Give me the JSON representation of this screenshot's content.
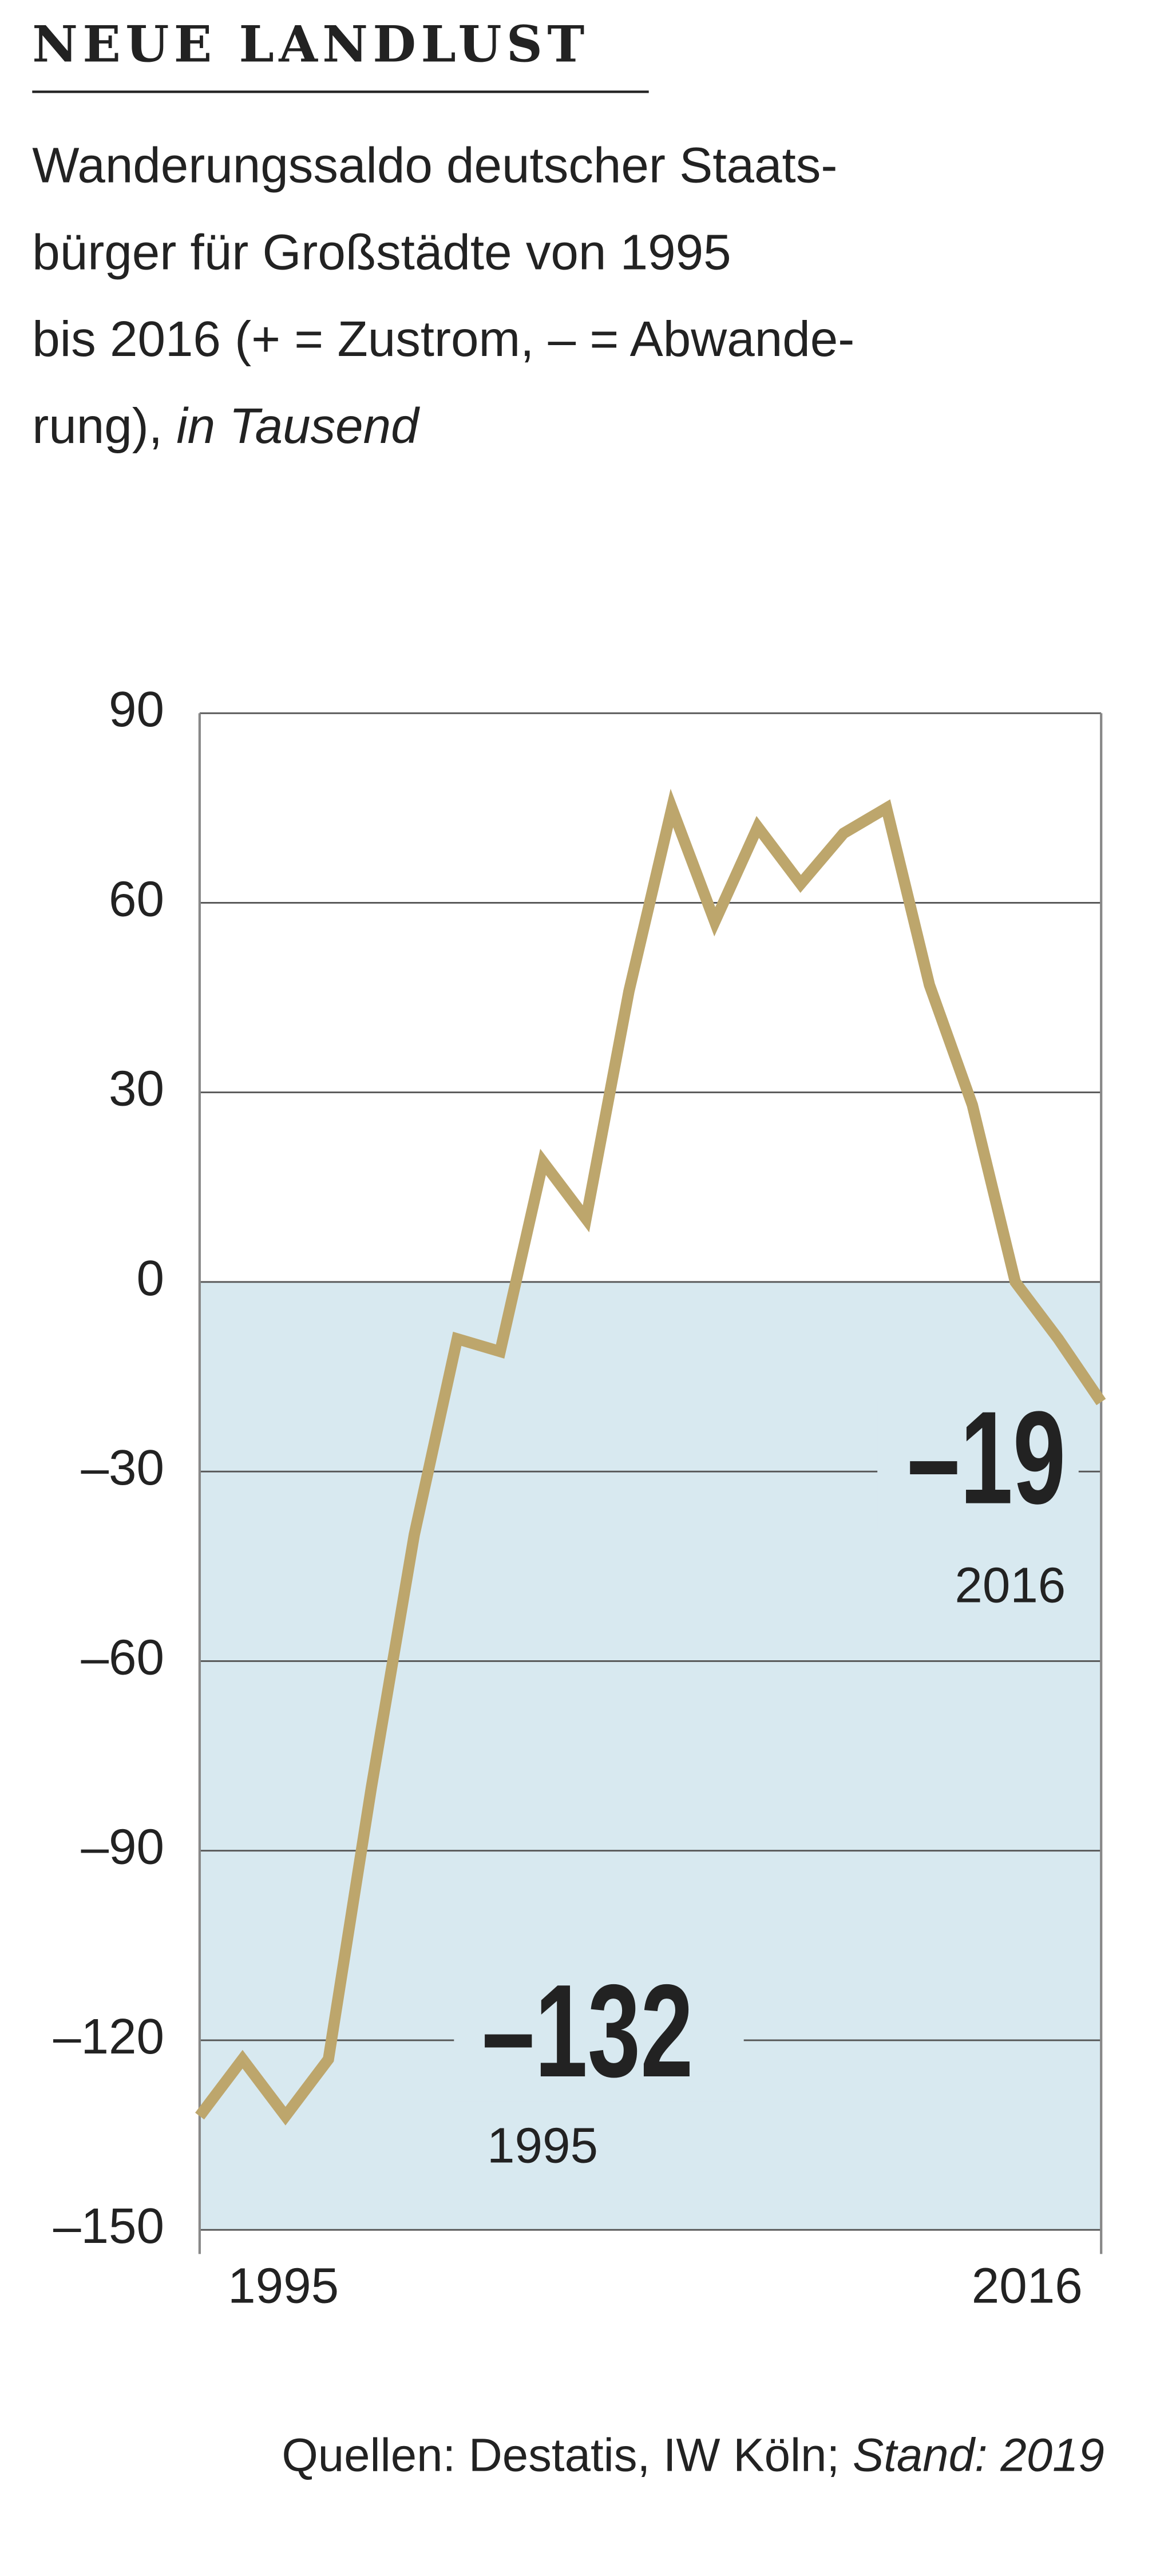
{
  "chart_data": {
    "type": "line",
    "title": "NEUE LANDLUST",
    "subtitle_lines": [
      "Wanderungssaldo deutscher Staats-",
      "bürger für Großstädte von 1995",
      "bis 2016 (+ = Zustrom, – = Abwande-",
      "rung),"
    ],
    "unit": "in Tausend",
    "source": "Quellen: Destatis, IW Köln;",
    "source_date": "Stand: 2019",
    "x": [
      1995,
      1996,
      1997,
      1998,
      1999,
      2000,
      2001,
      2002,
      2003,
      2004,
      2005,
      2006,
      2007,
      2008,
      2009,
      2010,
      2011,
      2012,
      2013,
      2014,
      2015,
      2016
    ],
    "series": [
      {
        "color": "#bda66c",
        "values": [
          -132,
          -123,
          -132,
          -123,
          -80,
          -40,
          -9,
          -11,
          19,
          10,
          46,
          75,
          57,
          72,
          63,
          71,
          75,
          47,
          28,
          0,
          -9,
          -19
        ],
        "value_labels": [
          "–132",
          null,
          null,
          null,
          null,
          null,
          null,
          null,
          null,
          null,
          null,
          null,
          null,
          null,
          null,
          null,
          null,
          null,
          null,
          null,
          null,
          "–19"
        ]
      }
    ],
    "xlim": [
      1995,
      2016
    ],
    "xticks": [
      1995,
      2016
    ],
    "ylim": [
      -150,
      90
    ],
    "yticks": [
      {
        "value": -150,
        "label": "–150"
      },
      {
        "value": -120,
        "label": "–120"
      },
      {
        "value": -90,
        "label": "–90"
      },
      {
        "value": -60,
        "label": "–60"
      },
      {
        "value": -30,
        "label": "–30"
      },
      0,
      30,
      60,
      90
    ],
    "negative_fill": "#d8e9f0",
    "grid": true
  }
}
